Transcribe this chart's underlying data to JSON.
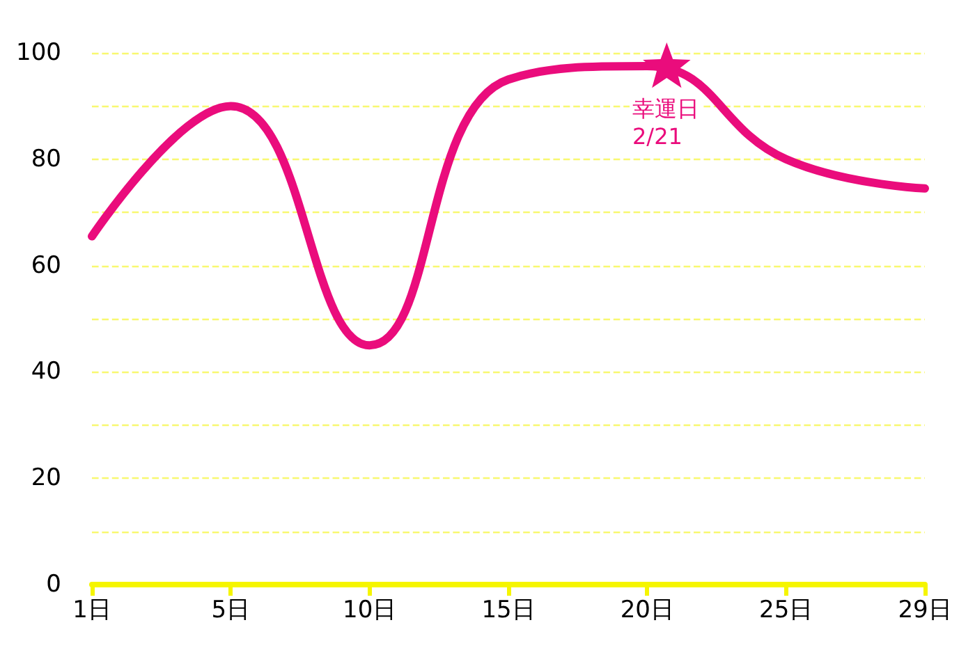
{
  "chart_data": {
    "type": "line",
    "categories": [
      "1日",
      "5日",
      "10日",
      "15日",
      "20日",
      "25日",
      "29日"
    ],
    "series": [
      {
        "color": "#ea0c7c",
        "values": [
          65.5,
          90,
          45,
          95,
          97.5,
          80,
          74.5
        ]
      }
    ],
    "ylim": [
      0,
      100
    ],
    "yticks": [
      0,
      {
        "value": 10,
        "label": null
      },
      20,
      {
        "value": 30,
        "label": null
      },
      40,
      {
        "value": 50,
        "label": null
      },
      60,
      {
        "value": 70,
        "label": null
      },
      80,
      {
        "value": 90,
        "label": null
      },
      100
    ],
    "grid": "y",
    "marker": "none",
    "line_style": "solid",
    "annotations": [
      "幸運日\n2/21"
    ]
  }
}
